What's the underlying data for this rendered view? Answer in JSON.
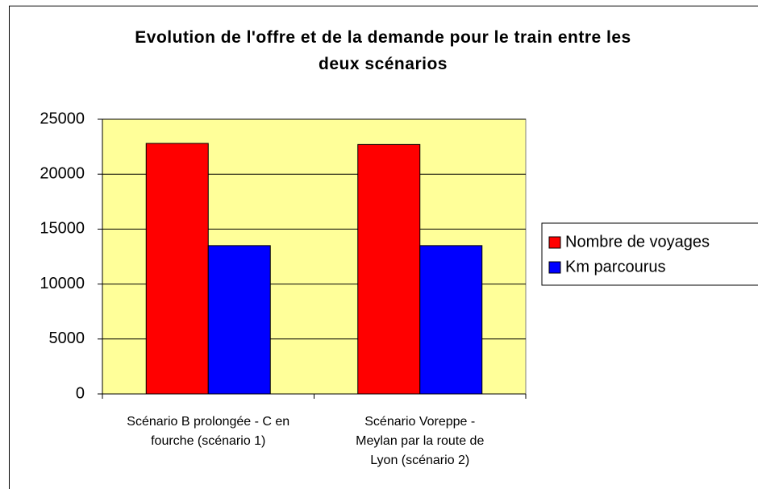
{
  "chart_data": {
    "type": "bar",
    "title": "Evolution de l'offre et de la demande pour le train entre les deux scénarios",
    "categories": [
      "Scénario B prolongée - C en fourche (scénario 1)",
      "Scénario Voreppe - Meylan par la route de Lyon (scénario 2)"
    ],
    "series": [
      {
        "name": "Nombre de voyages",
        "color": "#ff0000",
        "values": [
          22800,
          22700
        ]
      },
      {
        "name": "Km parcourus",
        "color": "#0000ff",
        "values": [
          13500,
          13500
        ]
      }
    ],
    "ylim": [
      0,
      25000
    ],
    "yticks": [
      0,
      5000,
      10000,
      15000,
      20000,
      25000
    ],
    "grid": true,
    "plot_background": "#ffff99",
    "legend": "right"
  }
}
